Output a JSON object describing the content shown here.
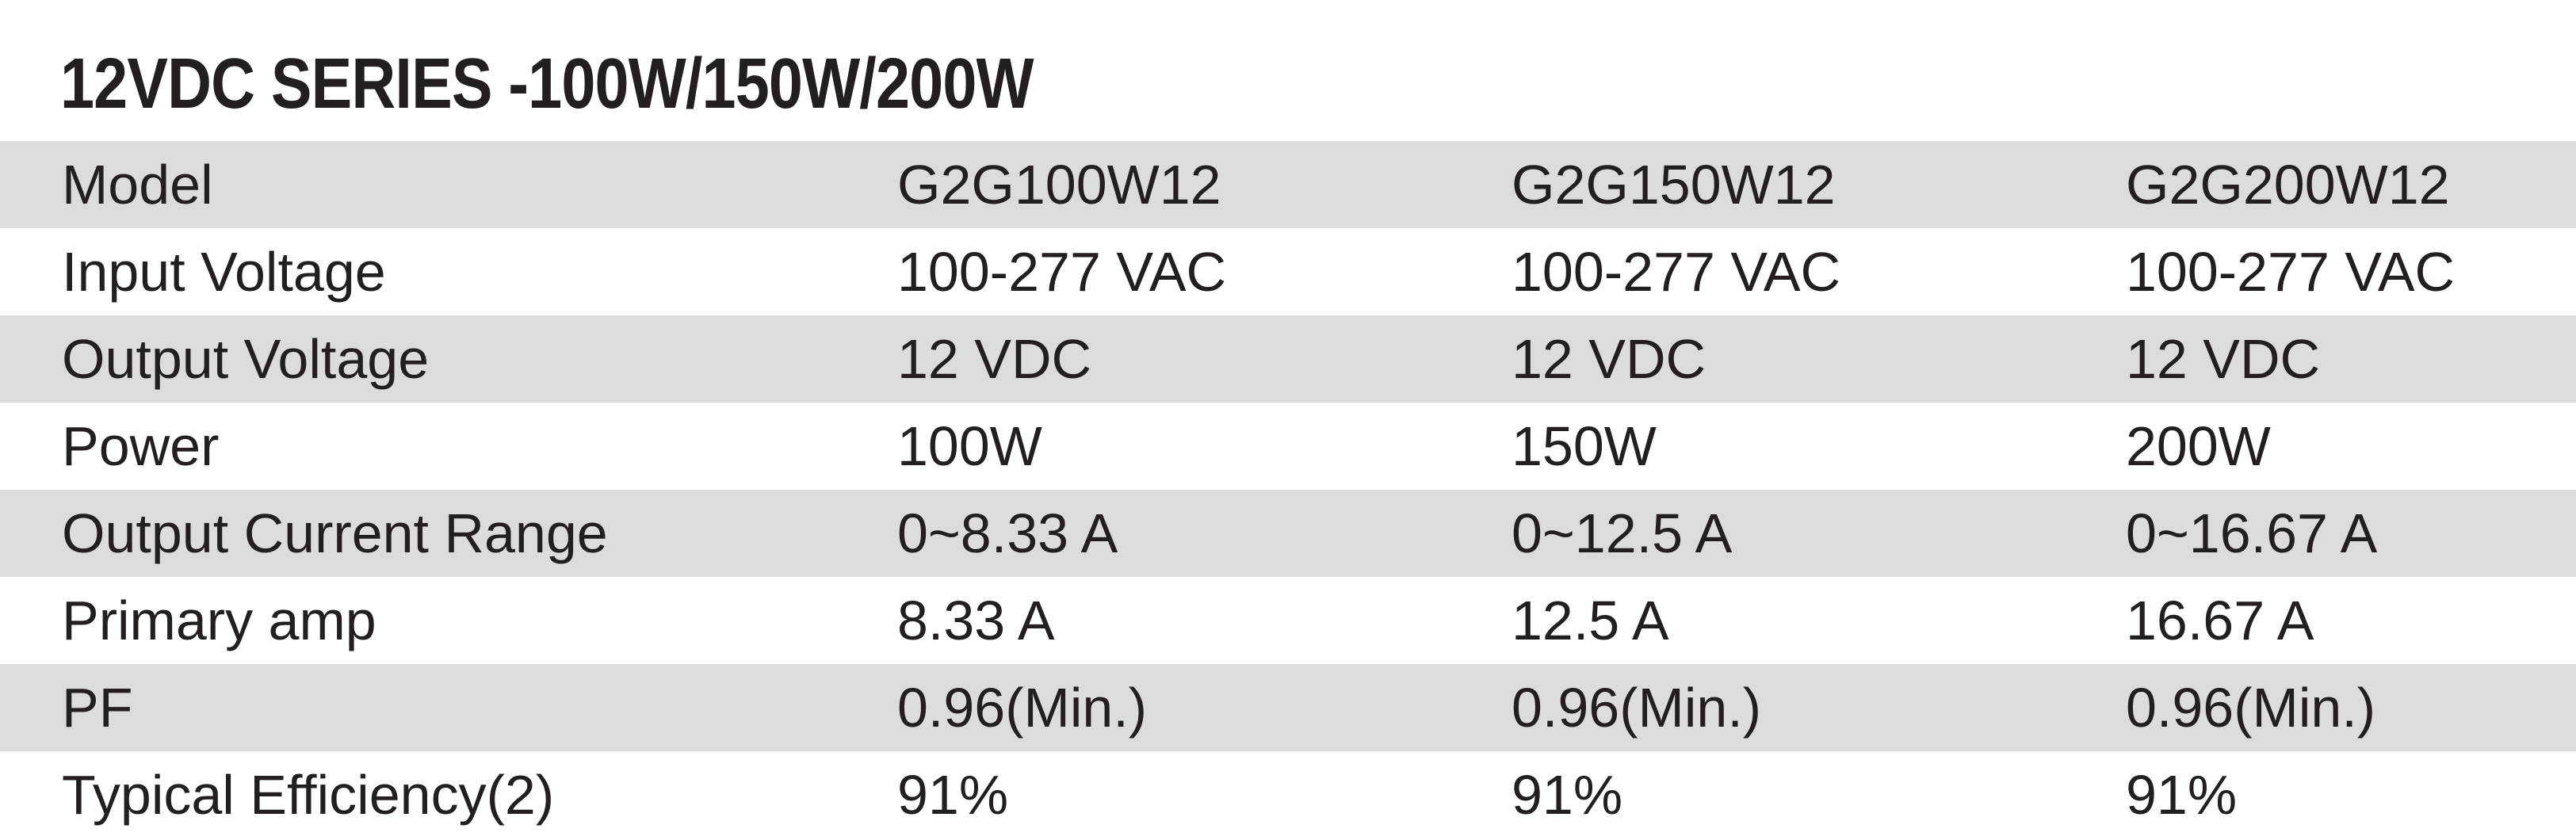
{
  "title": "12VDC SERIES -100W/150W/200W",
  "table": {
    "rows": [
      {
        "label": "Model",
        "values": [
          "G2G100W12",
          "G2G150W12",
          "G2G200W12"
        ]
      },
      {
        "label": "Input Voltage",
        "values": [
          "100-277 VAC",
          "100-277 VAC",
          "100-277 VAC"
        ]
      },
      {
        "label": "Output Voltage",
        "values": [
          "12 VDC",
          "12 VDC",
          "12 VDC"
        ]
      },
      {
        "label": "Power",
        "values": [
          "100W",
          "150W",
          "200W"
        ]
      },
      {
        "label": "Output Current Range",
        "values": [
          "0~8.33 A",
          "0~12.5 A",
          "0~16.67 A"
        ]
      },
      {
        "label": "Primary amp",
        "values": [
          "8.33 A",
          "12.5 A",
          "16.67 A"
        ]
      },
      {
        "label": "PF",
        "values": [
          "0.96(Min.)",
          "0.96(Min.)",
          "0.96(Min.)"
        ]
      },
      {
        "label": "Typical Efficiency(2)",
        "values": [
          "91%",
          "91%",
          "91%"
        ]
      }
    ]
  },
  "colors": {
    "text": "#231f20",
    "shaded_row": "#dcdcdc",
    "background": "#ffffff"
  }
}
